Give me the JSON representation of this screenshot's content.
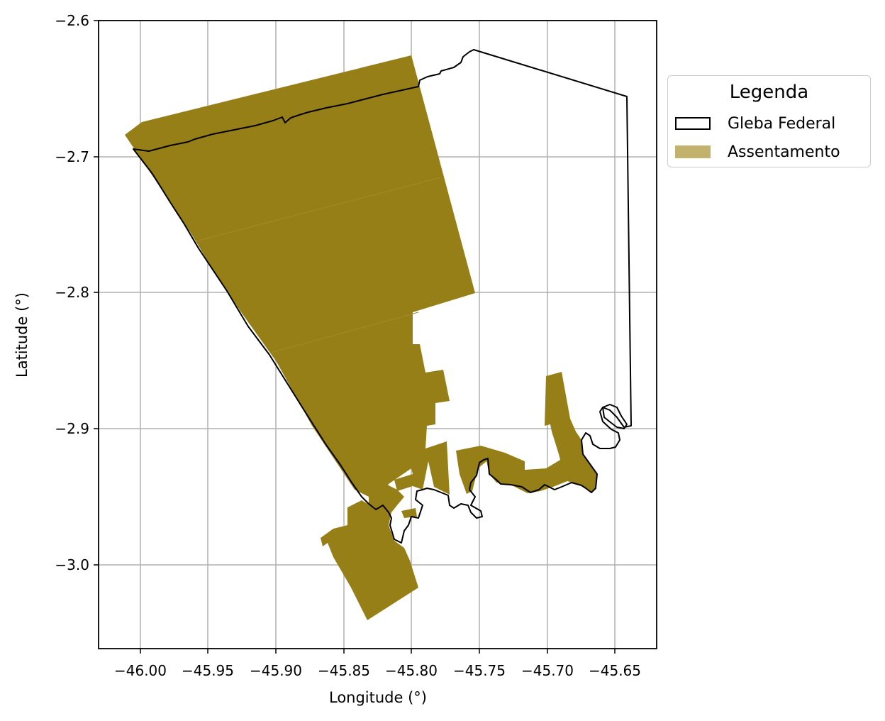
{
  "map": {
    "xlabel": "Longitude (°)",
    "ylabel": "Latitude (°)",
    "xlim": [
      -46.032,
      -45.62
    ],
    "ylim": [
      -3.062,
      -2.6
    ],
    "x_ticks": [
      "−46.00",
      "−45.95",
      "−45.90",
      "−45.85",
      "−45.80",
      "−45.75",
      "−45.70",
      "−45.65"
    ],
    "y_ticks": [
      "−2.6",
      "−2.7",
      "−2.8",
      "−2.9",
      "−3.0"
    ],
    "grid": true
  },
  "legend": {
    "title": "Legenda",
    "items": [
      {
        "label": "Gleba Federal",
        "style": "outline",
        "color": "#000000"
      },
      {
        "label": "Assentamento",
        "style": "fill",
        "color": "#c2b26e"
      }
    ]
  },
  "layers": {
    "assentamento_color": "#977f18",
    "gleba_stroke": "#000000"
  }
}
